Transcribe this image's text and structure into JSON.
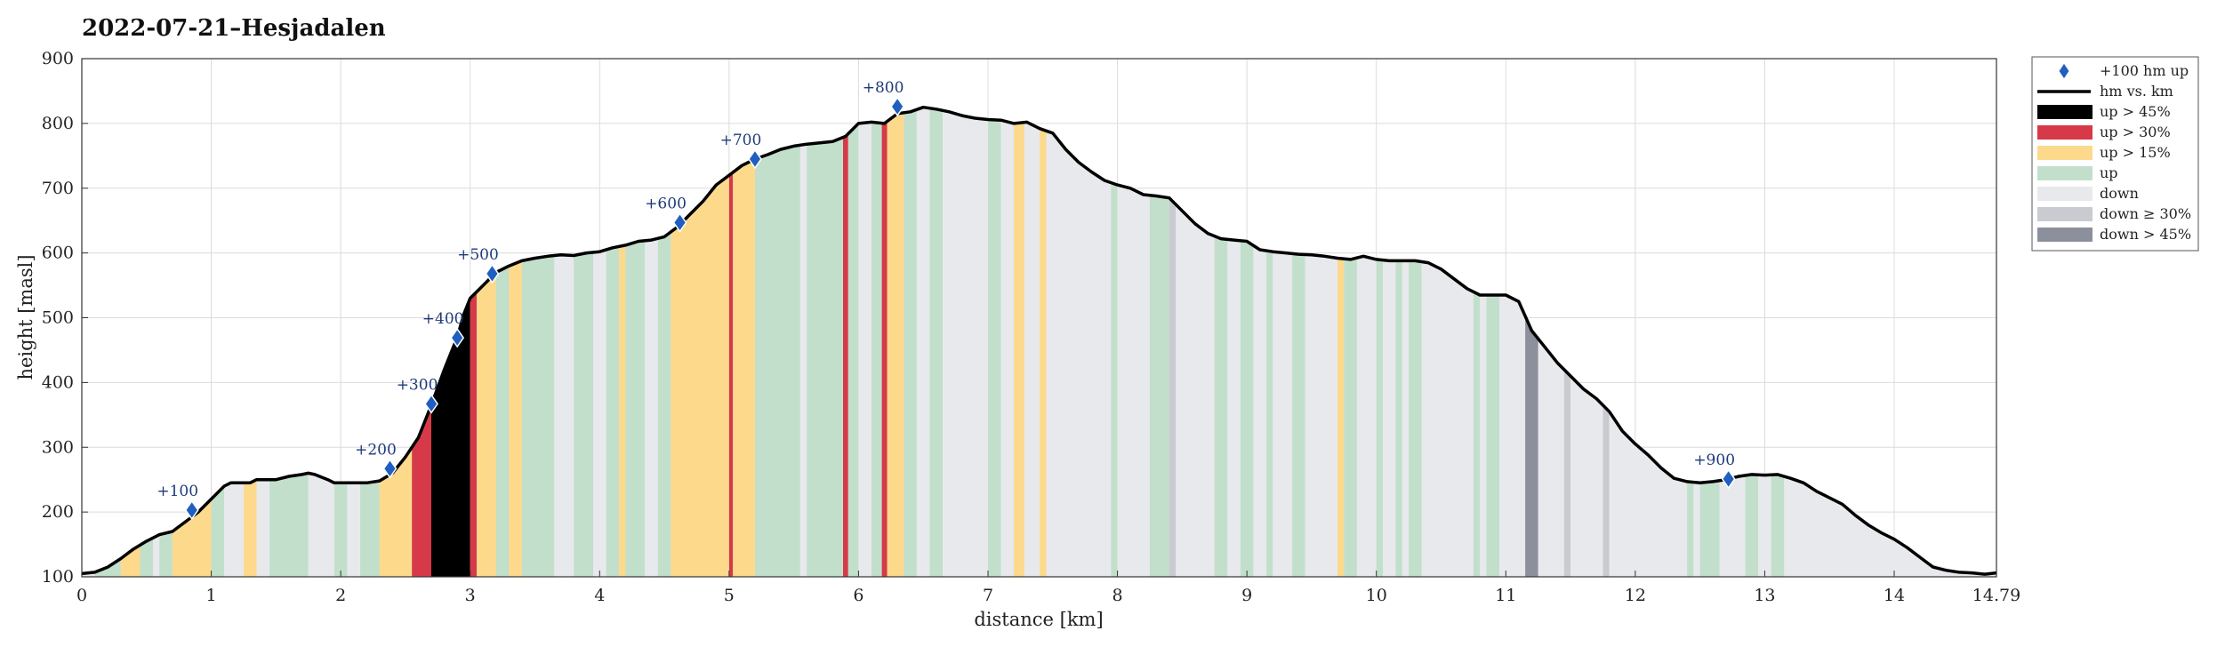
{
  "chart_data": {
    "type": "area",
    "title": "2022-07-21–Hesjadalen",
    "xlabel": "distance [km]",
    "ylabel": "height [masl]",
    "xlim": [
      0,
      14.79
    ],
    "ylim": [
      100,
      900
    ],
    "x_ticks": [
      "0",
      "1",
      "2",
      "3",
      "4",
      "5",
      "6",
      "7",
      "8",
      "9",
      "10",
      "11",
      "12",
      "13",
      "14",
      "14.79"
    ],
    "x_tick_values": [
      0,
      1,
      2,
      3,
      4,
      5,
      6,
      7,
      8,
      9,
      10,
      11,
      12,
      13,
      14,
      14.79
    ],
    "y_ticks": [
      "100",
      "200",
      "300",
      "400",
      "500",
      "600",
      "700",
      "800",
      "900"
    ],
    "y_tick_values": [
      100,
      200,
      300,
      400,
      500,
      600,
      700,
      800,
      900
    ],
    "grid": true,
    "legend_position": "outside-top-right",
    "colors": {
      "up_gt45": "#000000",
      "up_gt30": "#d63a48",
      "up_gt15": "#fdd98c",
      "up": "#c2dfcc",
      "down": "#e8e9ec",
      "down_ge30": "#c9cbd1",
      "down_gt45": "#8c909c",
      "line": "#000000",
      "marker": "#1f5fbf"
    },
    "legend": [
      {
        "key": "marker",
        "label": "+100 hm up"
      },
      {
        "key": "line",
        "label": "hm vs. km"
      },
      {
        "key": "up_gt45",
        "label": "up > 45%"
      },
      {
        "key": "up_gt30",
        "label": "up > 30%"
      },
      {
        "key": "up_gt15",
        "label": "up > 15%"
      },
      {
        "key": "up",
        "label": "up"
      },
      {
        "key": "down",
        "label": "down"
      },
      {
        "key": "down_ge30",
        "label": "down ≥ 30%"
      },
      {
        "key": "down_gt45",
        "label": "down > 45%"
      }
    ],
    "profile": [
      [
        0,
        105
      ],
      [
        0.1,
        107
      ],
      [
        0.2,
        115
      ],
      [
        0.3,
        128
      ],
      [
        0.4,
        143
      ],
      [
        0.5,
        155
      ],
      [
        0.6,
        165
      ],
      [
        0.7,
        170
      ],
      [
        0.8,
        185
      ],
      [
        0.9,
        200
      ],
      [
        1.0,
        220
      ],
      [
        1.05,
        230
      ],
      [
        1.1,
        240
      ],
      [
        1.15,
        245
      ],
      [
        1.2,
        245
      ],
      [
        1.3,
        245
      ],
      [
        1.35,
        250
      ],
      [
        1.5,
        250
      ],
      [
        1.6,
        255
      ],
      [
        1.7,
        258
      ],
      [
        1.75,
        260
      ],
      [
        1.8,
        258
      ],
      [
        1.9,
        250
      ],
      [
        1.95,
        245
      ],
      [
        2.0,
        245
      ],
      [
        2.1,
        245
      ],
      [
        2.2,
        245
      ],
      [
        2.3,
        248
      ],
      [
        2.4,
        260
      ],
      [
        2.5,
        285
      ],
      [
        2.6,
        315
      ],
      [
        2.7,
        365
      ],
      [
        2.8,
        420
      ],
      [
        2.9,
        470
      ],
      [
        2.95,
        505
      ],
      [
        3.0,
        530
      ],
      [
        3.1,
        550
      ],
      [
        3.2,
        570
      ],
      [
        3.3,
        580
      ],
      [
        3.4,
        588
      ],
      [
        3.5,
        592
      ],
      [
        3.6,
        595
      ],
      [
        3.7,
        597
      ],
      [
        3.8,
        596
      ],
      [
        3.9,
        600
      ],
      [
        4.0,
        602
      ],
      [
        4.1,
        608
      ],
      [
        4.2,
        612
      ],
      [
        4.3,
        618
      ],
      [
        4.4,
        620
      ],
      [
        4.5,
        625
      ],
      [
        4.6,
        640
      ],
      [
        4.7,
        660
      ],
      [
        4.8,
        680
      ],
      [
        4.9,
        705
      ],
      [
        5.0,
        720
      ],
      [
        5.1,
        735
      ],
      [
        5.2,
        745
      ],
      [
        5.3,
        752
      ],
      [
        5.4,
        760
      ],
      [
        5.5,
        765
      ],
      [
        5.6,
        768
      ],
      [
        5.7,
        770
      ],
      [
        5.8,
        772
      ],
      [
        5.9,
        780
      ],
      [
        6.0,
        800
      ],
      [
        6.1,
        802
      ],
      [
        6.2,
        800
      ],
      [
        6.3,
        815
      ],
      [
        6.4,
        818
      ],
      [
        6.5,
        825
      ],
      [
        6.6,
        822
      ],
      [
        6.7,
        818
      ],
      [
        6.8,
        812
      ],
      [
        6.9,
        808
      ],
      [
        7.0,
        806
      ],
      [
        7.1,
        805
      ],
      [
        7.2,
        800
      ],
      [
        7.3,
        802
      ],
      [
        7.4,
        792
      ],
      [
        7.5,
        785
      ],
      [
        7.6,
        760
      ],
      [
        7.7,
        740
      ],
      [
        7.8,
        725
      ],
      [
        7.9,
        712
      ],
      [
        8.0,
        705
      ],
      [
        8.1,
        700
      ],
      [
        8.2,
        690
      ],
      [
        8.3,
        688
      ],
      [
        8.4,
        685
      ],
      [
        8.5,
        665
      ],
      [
        8.6,
        645
      ],
      [
        8.7,
        630
      ],
      [
        8.8,
        622
      ],
      [
        8.9,
        620
      ],
      [
        9.0,
        618
      ],
      [
        9.1,
        605
      ],
      [
        9.2,
        602
      ],
      [
        9.3,
        600
      ],
      [
        9.4,
        598
      ],
      [
        9.5,
        597
      ],
      [
        9.6,
        595
      ],
      [
        9.7,
        592
      ],
      [
        9.8,
        590
      ],
      [
        9.9,
        595
      ],
      [
        10.0,
        590
      ],
      [
        10.1,
        588
      ],
      [
        10.2,
        588
      ],
      [
        10.3,
        588
      ],
      [
        10.4,
        585
      ],
      [
        10.5,
        575
      ],
      [
        10.6,
        560
      ],
      [
        10.7,
        545
      ],
      [
        10.8,
        535
      ],
      [
        10.9,
        535
      ],
      [
        11.0,
        535
      ],
      [
        11.1,
        525
      ],
      [
        11.2,
        480
      ],
      [
        11.3,
        455
      ],
      [
        11.4,
        430
      ],
      [
        11.5,
        410
      ],
      [
        11.6,
        390
      ],
      [
        11.7,
        375
      ],
      [
        11.8,
        355
      ],
      [
        11.9,
        325
      ],
      [
        12.0,
        305
      ],
      [
        12.1,
        288
      ],
      [
        12.2,
        268
      ],
      [
        12.3,
        252
      ],
      [
        12.4,
        247
      ],
      [
        12.5,
        245
      ],
      [
        12.6,
        247
      ],
      [
        12.7,
        250
      ],
      [
        12.8,
        255
      ],
      [
        12.9,
        258
      ],
      [
        13.0,
        257
      ],
      [
        13.1,
        258
      ],
      [
        13.2,
        252
      ],
      [
        13.3,
        245
      ],
      [
        13.4,
        232
      ],
      [
        13.5,
        222
      ],
      [
        13.6,
        212
      ],
      [
        13.7,
        195
      ],
      [
        13.8,
        180
      ],
      [
        13.9,
        168
      ],
      [
        14.0,
        158
      ],
      [
        14.1,
        145
      ],
      [
        14.2,
        130
      ],
      [
        14.3,
        115
      ],
      [
        14.4,
        110
      ],
      [
        14.5,
        107
      ],
      [
        14.6,
        106
      ],
      [
        14.7,
        104
      ],
      [
        14.79,
        106
      ]
    ],
    "segments": [
      [
        0.0,
        0.1,
        "down"
      ],
      [
        0.1,
        0.3,
        "up"
      ],
      [
        0.3,
        0.45,
        "up_gt15"
      ],
      [
        0.45,
        0.55,
        "up"
      ],
      [
        0.55,
        0.6,
        "down"
      ],
      [
        0.6,
        0.7,
        "up"
      ],
      [
        0.7,
        1.0,
        "up_gt15"
      ],
      [
        1.0,
        1.1,
        "up"
      ],
      [
        1.1,
        1.25,
        "down"
      ],
      [
        1.25,
        1.35,
        "up_gt15"
      ],
      [
        1.35,
        1.45,
        "down"
      ],
      [
        1.45,
        1.55,
        "up"
      ],
      [
        1.55,
        1.75,
        "up"
      ],
      [
        1.75,
        1.95,
        "down"
      ],
      [
        1.95,
        2.05,
        "up"
      ],
      [
        2.05,
        2.15,
        "down"
      ],
      [
        2.15,
        2.3,
        "up"
      ],
      [
        2.3,
        2.55,
        "up_gt15"
      ],
      [
        2.55,
        2.7,
        "up_gt30"
      ],
      [
        2.7,
        3.0,
        "up_gt45"
      ],
      [
        3.0,
        3.05,
        "up_gt30"
      ],
      [
        3.05,
        3.2,
        "up_gt15"
      ],
      [
        3.2,
        3.3,
        "up"
      ],
      [
        3.3,
        3.4,
        "up_gt15"
      ],
      [
        3.4,
        3.5,
        "up"
      ],
      [
        3.5,
        3.65,
        "up"
      ],
      [
        3.65,
        3.8,
        "down"
      ],
      [
        3.8,
        3.95,
        "up"
      ],
      [
        3.95,
        4.05,
        "down"
      ],
      [
        4.05,
        4.15,
        "up"
      ],
      [
        4.15,
        4.2,
        "up_gt15"
      ],
      [
        4.2,
        4.35,
        "up"
      ],
      [
        4.35,
        4.45,
        "down"
      ],
      [
        4.45,
        4.55,
        "up"
      ],
      [
        4.55,
        4.85,
        "up_gt15"
      ],
      [
        4.85,
        5.0,
        "up_gt15"
      ],
      [
        5.0,
        5.03,
        "up_gt30"
      ],
      [
        5.03,
        5.2,
        "up_gt15"
      ],
      [
        5.2,
        5.55,
        "up"
      ],
      [
        5.55,
        5.6,
        "down"
      ],
      [
        5.6,
        5.9,
        "up"
      ],
      [
        5.88,
        5.92,
        "up_gt30"
      ],
      [
        5.92,
        6.0,
        "up"
      ],
      [
        6.0,
        6.1,
        "down"
      ],
      [
        6.1,
        6.18,
        "up"
      ],
      [
        6.18,
        6.22,
        "up_gt30"
      ],
      [
        6.22,
        6.35,
        "up_gt15"
      ],
      [
        6.35,
        6.45,
        "up"
      ],
      [
        6.45,
        6.55,
        "down"
      ],
      [
        6.55,
        6.65,
        "up"
      ],
      [
        6.65,
        7.0,
        "down"
      ],
      [
        7.0,
        7.1,
        "up"
      ],
      [
        7.1,
        7.2,
        "down"
      ],
      [
        7.2,
        7.28,
        "up_gt15"
      ],
      [
        7.28,
        7.4,
        "down"
      ],
      [
        7.4,
        7.45,
        "up_gt15"
      ],
      [
        7.45,
        7.95,
        "down"
      ],
      [
        7.95,
        8.0,
        "up"
      ],
      [
        8.0,
        8.25,
        "down"
      ],
      [
        8.25,
        8.4,
        "up"
      ],
      [
        8.4,
        8.45,
        "down_ge30"
      ],
      [
        8.45,
        8.75,
        "down"
      ],
      [
        8.75,
        8.85,
        "up"
      ],
      [
        8.85,
        8.95,
        "down"
      ],
      [
        8.95,
        9.05,
        "up"
      ],
      [
        9.05,
        9.15,
        "down"
      ],
      [
        9.15,
        9.2,
        "up"
      ],
      [
        9.2,
        9.35,
        "down"
      ],
      [
        9.35,
        9.45,
        "up"
      ],
      [
        9.45,
        9.7,
        "down"
      ],
      [
        9.7,
        9.75,
        "up_gt15"
      ],
      [
        9.75,
        9.85,
        "up"
      ],
      [
        9.85,
        10.0,
        "down"
      ],
      [
        10.0,
        10.05,
        "up"
      ],
      [
        10.05,
        10.15,
        "down"
      ],
      [
        10.15,
        10.2,
        "up"
      ],
      [
        10.2,
        10.25,
        "down"
      ],
      [
        10.25,
        10.35,
        "up"
      ],
      [
        10.35,
        10.75,
        "down"
      ],
      [
        10.75,
        10.8,
        "up"
      ],
      [
        10.8,
        10.85,
        "down"
      ],
      [
        10.85,
        10.95,
        "up"
      ],
      [
        10.95,
        11.15,
        "down"
      ],
      [
        11.15,
        11.25,
        "down_gt45"
      ],
      [
        11.25,
        11.45,
        "down"
      ],
      [
        11.45,
        11.5,
        "down_ge30"
      ],
      [
        11.5,
        11.75,
        "down"
      ],
      [
        11.75,
        11.8,
        "down_ge30"
      ],
      [
        11.8,
        12.4,
        "down"
      ],
      [
        12.4,
        12.45,
        "up"
      ],
      [
        12.45,
        12.5,
        "down"
      ],
      [
        12.5,
        12.65,
        "up"
      ],
      [
        12.65,
        12.85,
        "down"
      ],
      [
        12.85,
        12.95,
        "up"
      ],
      [
        12.95,
        13.05,
        "down"
      ],
      [
        13.05,
        13.15,
        "up"
      ],
      [
        13.15,
        14.79,
        "down"
      ]
    ],
    "markers": [
      {
        "x": 0.85,
        "y": 203,
        "label": "+100"
      },
      {
        "x": 2.38,
        "y": 267,
        "label": "+200"
      },
      {
        "x": 2.7,
        "y": 367,
        "label": "+300"
      },
      {
        "x": 2.9,
        "y": 469,
        "label": "+400"
      },
      {
        "x": 3.17,
        "y": 568,
        "label": "+500"
      },
      {
        "x": 4.62,
        "y": 647,
        "label": "+600"
      },
      {
        "x": 5.2,
        "y": 745,
        "label": "+700"
      },
      {
        "x": 6.3,
        "y": 826,
        "label": "+800"
      },
      {
        "x": 12.72,
        "y": 251,
        "label": "+900"
      }
    ]
  }
}
